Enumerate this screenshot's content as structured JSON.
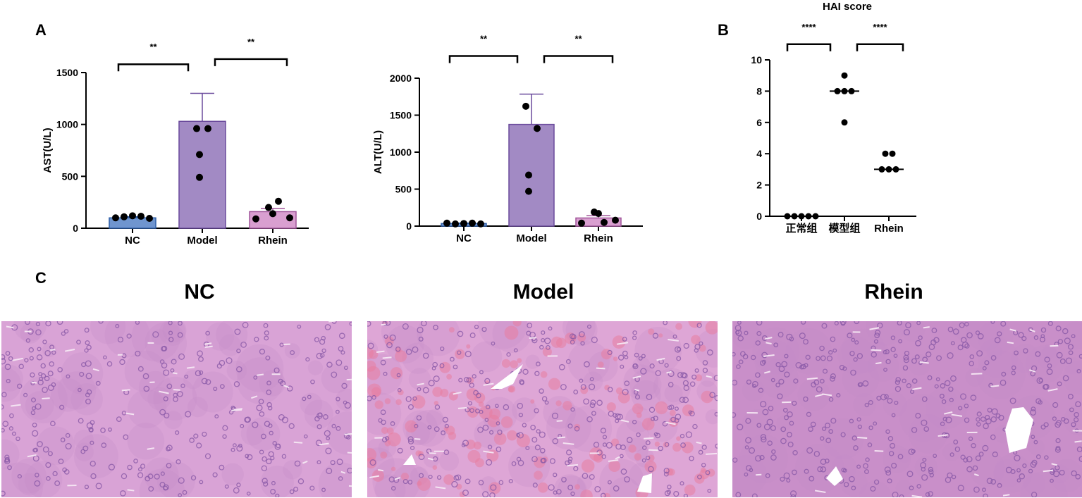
{
  "panel_letters": {
    "a": "A",
    "b": "B",
    "c": "C"
  },
  "chart_data": [
    {
      "id": "ast",
      "type": "bar",
      "title": "",
      "xlabel": "",
      "ylabel": "AST(U/L)",
      "ylim": [
        0,
        1500
      ],
      "yticks": [
        "0",
        "500",
        "1000",
        "1500"
      ],
      "ytick_values": [
        0,
        500,
        1000,
        1500
      ],
      "categories": [
        "NC",
        "Model",
        "Rhein"
      ],
      "values": [
        100,
        1030,
        160
      ],
      "error": [
        10,
        270,
        30
      ],
      "bar_colors": [
        "#6f95cf",
        "#a28ac4",
        "#d99fd0"
      ],
      "bar_edges": [
        "#2f5fa8",
        "#6a4a9c",
        "#a0559a"
      ],
      "points": [
        [
          100,
          110,
          120,
          115,
          95
        ],
        [
          960,
          960,
          710,
          490
        ],
        [
          90,
          200,
          140,
          260,
          100
        ]
      ],
      "significance": [
        {
          "from": 0,
          "to": 1,
          "label": "**",
          "y": 1580
        },
        {
          "from": 1,
          "to": 2,
          "label": "**",
          "y": 1630
        }
      ]
    },
    {
      "id": "alt",
      "type": "bar",
      "title": "",
      "xlabel": "",
      "ylabel": "ALT(U/L)",
      "ylim": [
        0,
        2000
      ],
      "yticks": [
        "0",
        "500",
        "1000",
        "1500",
        "2000"
      ],
      "ytick_values": [
        0,
        500,
        1000,
        1500,
        2000
      ],
      "categories": [
        "NC",
        "Model",
        "Rhein"
      ],
      "values": [
        35,
        1375,
        110
      ],
      "error": [
        5,
        410,
        30
      ],
      "bar_colors": [
        "#6f95cf",
        "#a28ac4",
        "#d99fd0"
      ],
      "bar_edges": [
        "#2f5fa8",
        "#6a4a9c",
        "#a0559a"
      ],
      "points": [
        [
          40,
          30,
          35,
          40,
          30
        ],
        [
          1620,
          1320,
          690,
          470
        ],
        [
          40,
          190,
          170,
          50,
          80
        ]
      ],
      "significance": [
        {
          "from": 0,
          "to": 1,
          "label": "**",
          "y": 2300
        },
        {
          "from": 1,
          "to": 2,
          "label": "**",
          "y": 2300
        }
      ]
    },
    {
      "id": "hai",
      "type": "scatter",
      "title": "HAI score",
      "xlabel": "",
      "ylabel": "",
      "ylim": [
        0,
        10
      ],
      "yticks": [
        "0",
        "2",
        "4",
        "6",
        "8",
        "10"
      ],
      "ytick_values": [
        0,
        2,
        4,
        6,
        8,
        10
      ],
      "categories": [
        "正常组",
        "模型组",
        "Rhein"
      ],
      "points": [
        [
          0,
          0,
          0,
          0,
          0
        ],
        [
          9,
          8,
          8,
          8,
          6
        ],
        [
          4,
          4,
          3,
          3,
          3
        ]
      ],
      "medians": [
        0,
        8,
        3
      ],
      "significance": [
        {
          "from": 0,
          "to": 1,
          "label": "****",
          "y": 11
        },
        {
          "from": 1,
          "to": 2,
          "label": "****",
          "y": 11
        }
      ]
    }
  ],
  "photos": {
    "titles": [
      "NC",
      "Model",
      "Rhein"
    ],
    "colors": {
      "tissue_normal": "#d9a3d6",
      "tissue_dark": "#c58ac6",
      "nuclei": "#8a5aa8",
      "hemorrhage": "#e77ea0",
      "vessel": "#ffffff"
    }
  }
}
